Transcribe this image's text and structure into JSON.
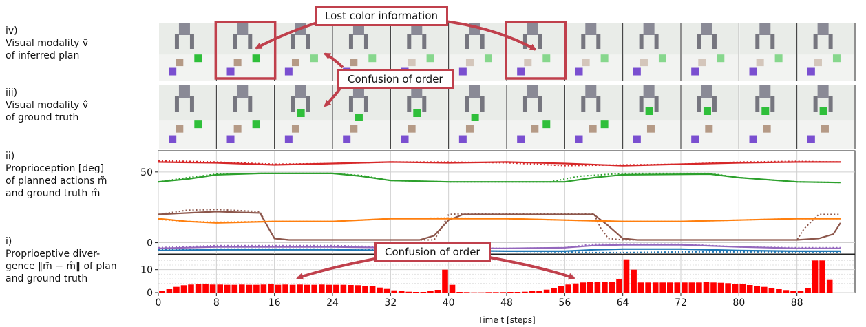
{
  "row_labels": {
    "iv": [
      "iv)",
      "Visual modality ṽ",
      "of inferred plan"
    ],
    "iii": [
      "iii)",
      "Visual modality v̂",
      "of ground truth"
    ],
    "ii": [
      "ii)",
      "Proprioception [deg]",
      "of planned actions m̃",
      "and ground truth m̂"
    ],
    "i": [
      "i)",
      "Proprioeptive diver-",
      "gence ‖m̃ − m̂‖ of plan",
      "and ground truth"
    ]
  },
  "callouts": {
    "lost_color": "Lost color information",
    "order_top": "Confusion of order",
    "order_bottom": "Confusion of order"
  },
  "colors": {
    "accent": "#c0404c",
    "bar": "#ff0000",
    "red": "#d62728",
    "green": "#2ca02c",
    "brown": "#8c564b",
    "orange": "#ff7f0e",
    "purple": "#9467bd",
    "blue": "#1f77b4"
  },
  "frames": {
    "count": 12,
    "highlighted_inferred": [
      1,
      6
    ]
  },
  "chart_data": [
    {
      "type": "line",
      "name": "proprioception",
      "ylabel": "",
      "yticks": [
        0,
        50
      ],
      "ylim": [
        -8,
        65
      ],
      "xlim": [
        0,
        96
      ],
      "grid": true,
      "series": [
        {
          "color": "red",
          "planned": [
            [
              0,
              57
            ],
            [
              8,
              56.5
            ],
            [
              16,
              55
            ],
            [
              24,
              56
            ],
            [
              32,
              57
            ],
            [
              40,
              56.5
            ],
            [
              48,
              57
            ],
            [
              56,
              56
            ],
            [
              64,
              54.5
            ],
            [
              72,
              55.5
            ],
            [
              80,
              56.5
            ],
            [
              88,
              57
            ],
            [
              94,
              57
            ]
          ],
          "truth": [
            [
              0,
              58
            ],
            [
              8,
              57
            ],
            [
              16,
              55.5
            ],
            [
              24,
              56
            ],
            [
              32,
              57
            ],
            [
              40,
              57
            ],
            [
              48,
              56.5
            ],
            [
              56,
              54.5
            ],
            [
              64,
              55
            ],
            [
              72,
              55.5
            ],
            [
              80,
              57
            ],
            [
              88,
              57.5
            ],
            [
              94,
              57
            ]
          ]
        },
        {
          "color": "green",
          "planned": [
            [
              0,
              43
            ],
            [
              4,
              45
            ],
            [
              8,
              48
            ],
            [
              14,
              49
            ],
            [
              24,
              49
            ],
            [
              28,
              47
            ],
            [
              32,
              44
            ],
            [
              40,
              43
            ],
            [
              56,
              43
            ],
            [
              60,
              46
            ],
            [
              64,
              48
            ],
            [
              76,
              48.5
            ],
            [
              80,
              46
            ],
            [
              88,
              43
            ],
            [
              94,
              42.5
            ]
          ],
          "truth": [
            [
              0,
              43
            ],
            [
              4,
              46
            ],
            [
              8,
              48.5
            ],
            [
              14,
              49
            ],
            [
              24,
              49
            ],
            [
              28,
              47.5
            ],
            [
              32,
              44
            ],
            [
              40,
              43
            ],
            [
              54,
              43
            ],
            [
              58,
              47
            ],
            [
              64,
              49
            ],
            [
              76,
              49
            ],
            [
              80,
              46
            ],
            [
              88,
              43
            ],
            [
              94,
              42.5
            ]
          ]
        },
        {
          "color": "brown",
          "planned": [
            [
              0,
              20
            ],
            [
              4,
              21
            ],
            [
              8,
              22
            ],
            [
              14,
              21
            ],
            [
              15,
              12
            ],
            [
              16,
              3
            ],
            [
              18,
              2
            ],
            [
              36,
              2
            ],
            [
              38,
              5
            ],
            [
              40,
              16
            ],
            [
              42,
              20
            ],
            [
              60,
              20
            ],
            [
              62,
              12
            ],
            [
              64,
              3
            ],
            [
              66,
              2
            ],
            [
              88,
              2
            ],
            [
              91,
              3
            ],
            [
              93,
              6
            ],
            [
              94,
              14
            ]
          ],
          "truth": [
            [
              0,
              20
            ],
            [
              4,
              23
            ],
            [
              8,
              23.5
            ],
            [
              14,
              22
            ],
            [
              15,
              12
            ],
            [
              16,
              3
            ],
            [
              18,
              2
            ],
            [
              38,
              2
            ],
            [
              39,
              10
            ],
            [
              40,
              20
            ],
            [
              42,
              20.5
            ],
            [
              60,
              20.5
            ],
            [
              61,
              10
            ],
            [
              62,
              3
            ],
            [
              64,
              2
            ],
            [
              88,
              2
            ],
            [
              89,
              10
            ],
            [
              91,
              20
            ],
            [
              94,
              20
            ]
          ]
        },
        {
          "color": "orange",
          "planned": [
            [
              0,
              17
            ],
            [
              4,
              15
            ],
            [
              8,
              14
            ],
            [
              16,
              15
            ],
            [
              24,
              15
            ],
            [
              32,
              17
            ],
            [
              40,
              17
            ],
            [
              48,
              17
            ],
            [
              56,
              16
            ],
            [
              64,
              15
            ],
            [
              72,
              15
            ],
            [
              80,
              16
            ],
            [
              88,
              17
            ],
            [
              94,
              17
            ]
          ],
          "truth": [
            [
              0,
              16.5
            ],
            [
              4,
              15
            ],
            [
              8,
              14.5
            ],
            [
              16,
              15
            ],
            [
              24,
              15
            ],
            [
              32,
              17
            ],
            [
              40,
              17.5
            ],
            [
              48,
              17
            ],
            [
              56,
              16
            ],
            [
              64,
              15
            ],
            [
              72,
              15
            ],
            [
              80,
              16
            ],
            [
              88,
              17
            ],
            [
              94,
              17
            ]
          ]
        },
        {
          "color": "purple",
          "planned": [
            [
              0,
              -4
            ],
            [
              8,
              -3
            ],
            [
              24,
              -3
            ],
            [
              32,
              -3.5
            ],
            [
              40,
              -4
            ],
            [
              48,
              -4
            ],
            [
              56,
              -3.5
            ],
            [
              60,
              -2
            ],
            [
              64,
              -1.5
            ],
            [
              72,
              -1.5
            ],
            [
              80,
              -3
            ],
            [
              88,
              -4
            ],
            [
              94,
              -4
            ]
          ],
          "truth": [
            [
              0,
              -3.5
            ],
            [
              8,
              -2
            ],
            [
              24,
              -2
            ],
            [
              32,
              -3
            ],
            [
              40,
              -3.5
            ],
            [
              48,
              -4
            ],
            [
              56,
              -3.5
            ],
            [
              60,
              -1
            ],
            [
              64,
              -1
            ],
            [
              72,
              -1
            ],
            [
              80,
              -3
            ],
            [
              88,
              -3.5
            ],
            [
              94,
              -3.5
            ]
          ]
        },
        {
          "color": "blue",
          "planned": [
            [
              0,
              -5.5
            ],
            [
              8,
              -5
            ],
            [
              24,
              -5
            ],
            [
              32,
              -5.5
            ],
            [
              40,
              -5.5
            ],
            [
              48,
              -6
            ],
            [
              56,
              -6
            ],
            [
              60,
              -5
            ],
            [
              64,
              -4.5
            ],
            [
              72,
              -4.5
            ],
            [
              80,
              -5.5
            ],
            [
              88,
              -6
            ],
            [
              94,
              -6
            ]
          ],
          "truth": [
            [
              0,
              -5
            ],
            [
              8,
              -4.5
            ],
            [
              24,
              -4.5
            ],
            [
              32,
              -5
            ],
            [
              40,
              -5.5
            ],
            [
              48,
              -6
            ],
            [
              56,
              -6.5
            ],
            [
              60,
              -7
            ],
            [
              64,
              -7
            ],
            [
              72,
              -6.5
            ],
            [
              80,
              -6.5
            ],
            [
              88,
              -6.5
            ],
            [
              94,
              -6.5
            ]
          ]
        }
      ]
    },
    {
      "type": "bar",
      "name": "divergence",
      "xlabel": "Time t [steps]",
      "yticks": [
        0,
        10
      ],
      "ylim": [
        0,
        16.5
      ],
      "xticks": [
        0,
        8,
        16,
        24,
        32,
        40,
        48,
        56,
        64,
        72,
        80,
        88
      ],
      "values": [
        0.6,
        1.5,
        2.5,
        3.2,
        3.5,
        3.6,
        3.6,
        3.5,
        3.5,
        3.4,
        3.4,
        3.5,
        3.4,
        3.4,
        3.5,
        3.6,
        3.4,
        3.5,
        3.4,
        3.5,
        3.4,
        3.4,
        3.5,
        3.4,
        3.4,
        3.4,
        3.3,
        3.2,
        3.0,
        2.7,
        2.2,
        1.6,
        1.0,
        0.6,
        0.4,
        0.3,
        0.3,
        0.6,
        1.2,
        10.0,
        3.4,
        0.3,
        0.2,
        0.1,
        0.1,
        0.2,
        0.2,
        0.2,
        0.3,
        0.3,
        0.4,
        0.6,
        0.9,
        1.3,
        2.0,
        2.8,
        3.5,
        4.0,
        4.4,
        4.6,
        4.6,
        4.7,
        4.8,
        6.0,
        14.5,
        10.0,
        4.4,
        4.4,
        4.4,
        4.4,
        4.4,
        4.4,
        4.4,
        4.4,
        4.4,
        4.5,
        4.4,
        4.3,
        4.1,
        3.9,
        3.6,
        3.3,
        3.0,
        2.5,
        2.0,
        1.5,
        1.1,
        0.8,
        0.6,
        2.0,
        14.0,
        14.0,
        5.5
      ]
    }
  ]
}
